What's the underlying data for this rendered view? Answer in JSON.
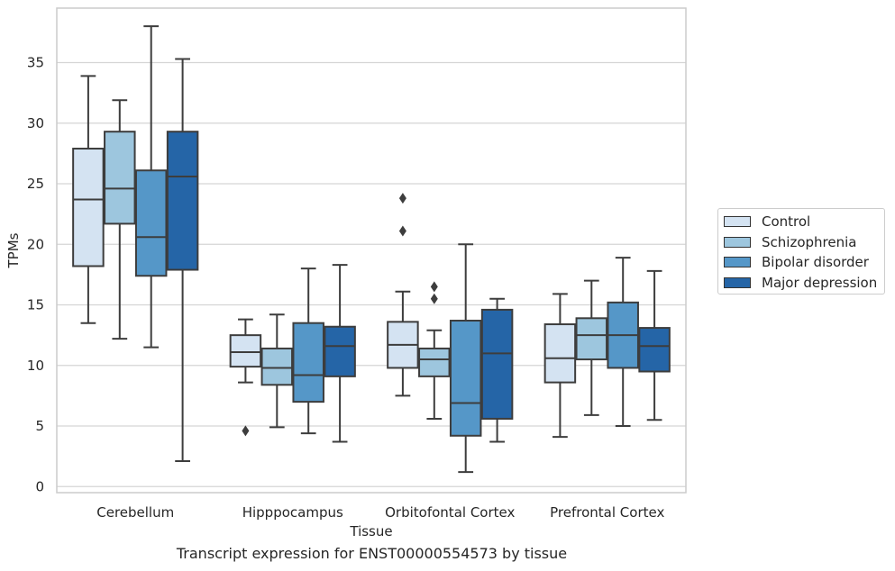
{
  "caption": "Transcript expression for ENST00000554573 by tissue",
  "chart_data": {
    "type": "box",
    "title": "",
    "xlabel": "Tissue",
    "ylabel": "TPMs",
    "ylim": [
      -0.5,
      39.5
    ],
    "yticks": [
      0,
      5,
      10,
      15,
      20,
      25,
      30,
      35
    ],
    "grid": "horizontal",
    "legend_position": "right",
    "categories": [
      "Cerebellum",
      "Hipppocampus",
      "Orbitofontal Cortex",
      "Prefrontal Cortex"
    ],
    "series": [
      {
        "name": "Control",
        "color": "#d4e3f2",
        "boxes": [
          {
            "whisker_low": 13.5,
            "q1": 18.2,
            "median": 23.7,
            "q3": 27.9,
            "whisker_high": 33.9,
            "outliers": []
          },
          {
            "whisker_low": 8.6,
            "q1": 9.9,
            "median": 11.1,
            "q3": 12.5,
            "whisker_high": 13.8,
            "outliers": [
              4.6
            ]
          },
          {
            "whisker_low": 7.5,
            "q1": 9.8,
            "median": 11.7,
            "q3": 13.6,
            "whisker_high": 16.1,
            "outliers": [
              21.1,
              23.8
            ]
          },
          {
            "whisker_low": 4.1,
            "q1": 8.6,
            "median": 10.6,
            "q3": 13.4,
            "whisker_high": 15.9,
            "outliers": []
          }
        ]
      },
      {
        "name": "Schizophrenia",
        "color": "#9dc6de",
        "boxes": [
          {
            "whisker_low": 12.2,
            "q1": 21.7,
            "median": 24.6,
            "q3": 29.3,
            "whisker_high": 31.9,
            "outliers": []
          },
          {
            "whisker_low": 4.9,
            "q1": 8.4,
            "median": 9.8,
            "q3": 11.4,
            "whisker_high": 14.2,
            "outliers": []
          },
          {
            "whisker_low": 5.6,
            "q1": 9.1,
            "median": 10.5,
            "q3": 11.4,
            "whisker_high": 12.9,
            "outliers": [
              15.5,
              16.5
            ]
          },
          {
            "whisker_low": 5.9,
            "q1": 10.5,
            "median": 12.5,
            "q3": 13.9,
            "whisker_high": 17.0,
            "outliers": []
          }
        ]
      },
      {
        "name": "Bipolar disorder",
        "color": "#5597c8",
        "boxes": [
          {
            "whisker_low": 11.5,
            "q1": 17.4,
            "median": 20.6,
            "q3": 26.1,
            "whisker_high": 38.0,
            "outliers": []
          },
          {
            "whisker_low": 4.4,
            "q1": 7.0,
            "median": 9.2,
            "q3": 13.5,
            "whisker_high": 18.0,
            "outliers": []
          },
          {
            "whisker_low": 1.2,
            "q1": 4.2,
            "median": 6.9,
            "q3": 13.7,
            "whisker_high": 20.0,
            "outliers": []
          },
          {
            "whisker_low": 5.0,
            "q1": 9.8,
            "median": 12.5,
            "q3": 15.2,
            "whisker_high": 18.9,
            "outliers": []
          }
        ]
      },
      {
        "name": "Major depression",
        "color": "#2565a7",
        "boxes": [
          {
            "whisker_low": 2.1,
            "q1": 17.9,
            "median": 25.6,
            "q3": 29.3,
            "whisker_high": 35.3,
            "outliers": []
          },
          {
            "whisker_low": 3.7,
            "q1": 9.1,
            "median": 11.6,
            "q3": 13.2,
            "whisker_high": 18.3,
            "outliers": []
          },
          {
            "whisker_low": 3.7,
            "q1": 5.6,
            "median": 11.0,
            "q3": 14.6,
            "whisker_high": 15.5,
            "outliers": []
          },
          {
            "whisker_low": 5.5,
            "q1": 9.5,
            "median": 11.6,
            "q3": 13.1,
            "whisker_high": 17.8,
            "outliers": []
          }
        ]
      }
    ]
  }
}
